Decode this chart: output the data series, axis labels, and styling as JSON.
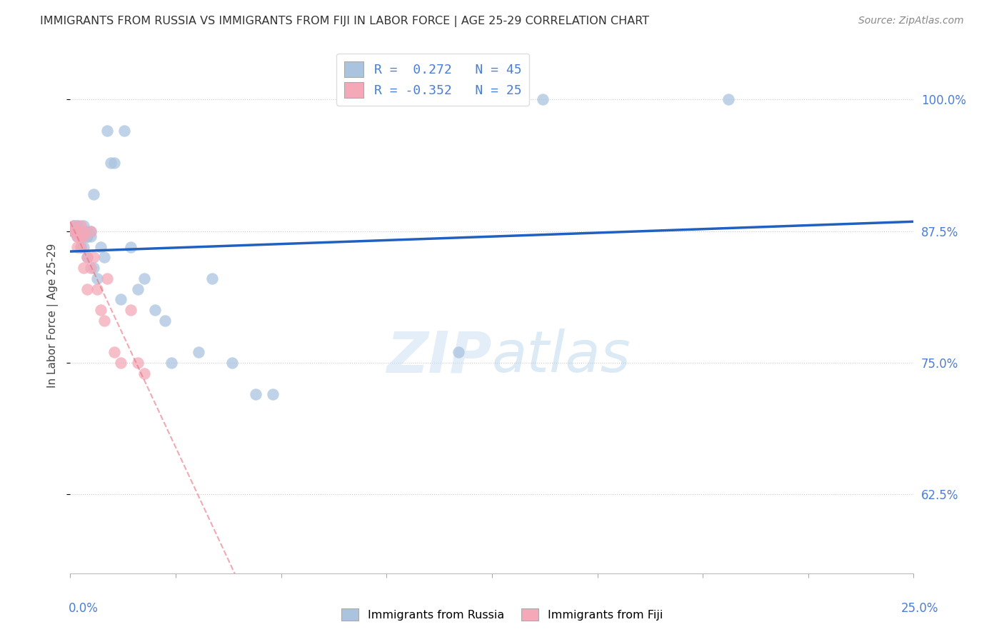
{
  "title": "IMMIGRANTS FROM RUSSIA VS IMMIGRANTS FROM FIJI IN LABOR FORCE | AGE 25-29 CORRELATION CHART",
  "source": "Source: ZipAtlas.com",
  "ylabel": "In Labor Force | Age 25-29",
  "russia_R": 0.272,
  "russia_N": 45,
  "fiji_R": -0.352,
  "fiji_N": 25,
  "russia_color": "#aac4e0",
  "fiji_color": "#f4a8b8",
  "russia_line_color": "#2060c0",
  "fiji_line_color": "#e87080",
  "axis_label_color": "#4a7fd5",
  "title_color": "#333333",
  "source_color": "#888888",
  "watermark_color": "#ddeeff",
  "russia_scatter_x": [
    0.001,
    0.001,
    0.001,
    0.002,
    0.002,
    0.002,
    0.002,
    0.003,
    0.003,
    0.003,
    0.003,
    0.004,
    0.004,
    0.004,
    0.004,
    0.005,
    0.005,
    0.005,
    0.005,
    0.006,
    0.006,
    0.007,
    0.007,
    0.008,
    0.009,
    0.01,
    0.011,
    0.012,
    0.013,
    0.015,
    0.016,
    0.018,
    0.02,
    0.022,
    0.025,
    0.028,
    0.03,
    0.038,
    0.042,
    0.048,
    0.055,
    0.06,
    0.115,
    0.14,
    0.195
  ],
  "russia_scatter_y": [
    0.875,
    0.88,
    0.875,
    0.88,
    0.875,
    0.87,
    0.88,
    0.875,
    0.87,
    0.86,
    0.875,
    0.87,
    0.875,
    0.86,
    0.88,
    0.87,
    0.875,
    0.85,
    0.87,
    0.87,
    0.875,
    0.84,
    0.91,
    0.83,
    0.86,
    0.85,
    0.97,
    0.94,
    0.94,
    0.81,
    0.97,
    0.86,
    0.82,
    0.83,
    0.8,
    0.79,
    0.75,
    0.76,
    0.83,
    0.75,
    0.72,
    0.72,
    0.76,
    1.0,
    1.0
  ],
  "fiji_scatter_x": [
    0.001,
    0.001,
    0.002,
    0.002,
    0.002,
    0.003,
    0.003,
    0.003,
    0.004,
    0.004,
    0.004,
    0.005,
    0.005,
    0.006,
    0.006,
    0.007,
    0.008,
    0.009,
    0.01,
    0.011,
    0.013,
    0.015,
    0.018,
    0.02,
    0.022
  ],
  "fiji_scatter_y": [
    0.875,
    0.88,
    0.875,
    0.87,
    0.86,
    0.88,
    0.87,
    0.86,
    0.87,
    0.875,
    0.84,
    0.85,
    0.82,
    0.875,
    0.84,
    0.85,
    0.82,
    0.8,
    0.79,
    0.83,
    0.76,
    0.75,
    0.8,
    0.75,
    0.74
  ],
  "xlim": [
    0.0,
    0.25
  ],
  "ylim": [
    0.55,
    1.04
  ],
  "yticks": [
    0.625,
    0.75,
    0.875,
    1.0
  ],
  "ytick_labels": [
    "62.5%",
    "75.0%",
    "87.5%",
    "100.0%"
  ],
  "xtick_label_left": "0.0%",
  "xtick_label_right": "25.0%"
}
